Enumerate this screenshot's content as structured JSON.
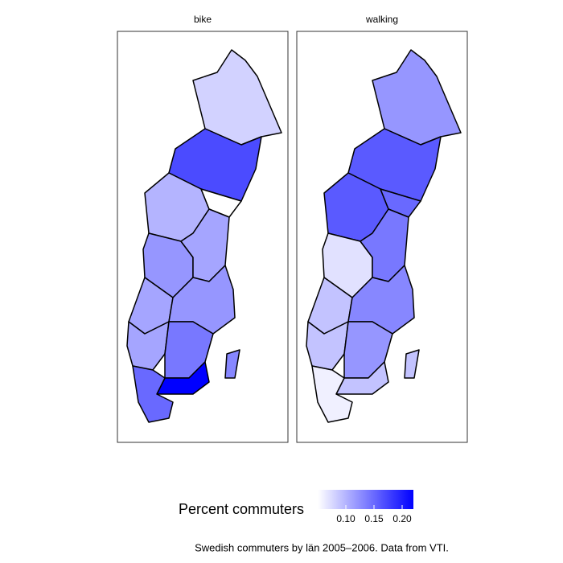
{
  "chart_data": {
    "type": "choropleth",
    "caption": "Swedish commuters by län 2005–2006. Data from VTI.",
    "legend_title": "Percent commuters",
    "low_color": "#ffffff",
    "high_color": "#0000ff",
    "colorlim": [
      0.05,
      0.22
    ],
    "colorticks": [
      {
        "value": 0.1,
        "label": "0.10"
      },
      {
        "value": 0.15,
        "label": "0.15"
      },
      {
        "value": 0.2,
        "label": "0.20"
      }
    ],
    "panels": [
      {
        "title": "bike",
        "values": [
          0.08,
          0.17,
          0.1,
          0.05,
          0.12,
          0.11,
          0.11,
          0.12,
          0.11,
          0.14,
          0.22,
          0.15,
          0.13
        ]
      },
      {
        "title": "walking",
        "values": [
          0.12,
          0.16,
          0.16,
          0.15,
          0.07,
          0.14,
          0.09,
          0.13,
          0.09,
          0.12,
          0.09,
          0.06,
          0.09
        ]
      }
    ]
  }
}
